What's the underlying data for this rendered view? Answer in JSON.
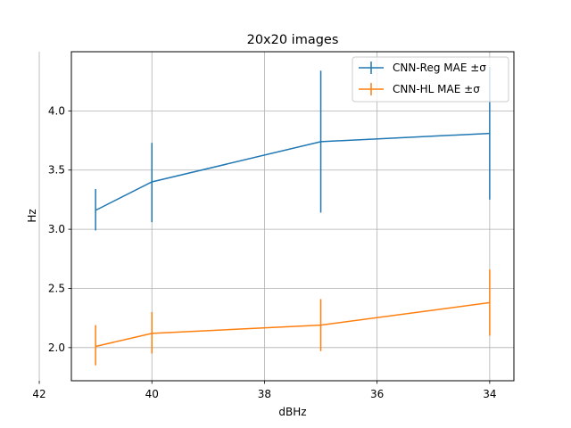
{
  "chart_data": {
    "type": "line",
    "title": "20x20 images",
    "xlabel": "dBHz",
    "ylabel": "Hz",
    "x": [
      41,
      40,
      37,
      34
    ],
    "x_ticks": [
      42,
      40,
      38,
      36,
      34
    ],
    "y_ticks": [
      2.0,
      2.5,
      3.0,
      3.5,
      4.0
    ],
    "xlim": [
      41.43,
      33.57
    ],
    "x_inverted": true,
    "ylim": [
      1.72,
      4.5
    ],
    "grid": true,
    "legend_position": "top-right",
    "series": [
      {
        "name": "CNN-Reg MAE ±σ",
        "color": "#1f77b4",
        "values": [
          3.16,
          3.4,
          3.74,
          3.81
        ],
        "err_low": [
          2.99,
          3.06,
          3.14,
          3.25
        ],
        "err_high": [
          3.34,
          3.73,
          4.34,
          4.37
        ]
      },
      {
        "name": "CNN-HL MAE ±σ",
        "color": "#ff7f0e",
        "values": [
          2.01,
          2.12,
          2.19,
          2.38
        ],
        "err_low": [
          1.85,
          1.95,
          1.97,
          2.1
        ],
        "err_high": [
          2.19,
          2.3,
          2.41,
          2.66
        ]
      }
    ]
  }
}
